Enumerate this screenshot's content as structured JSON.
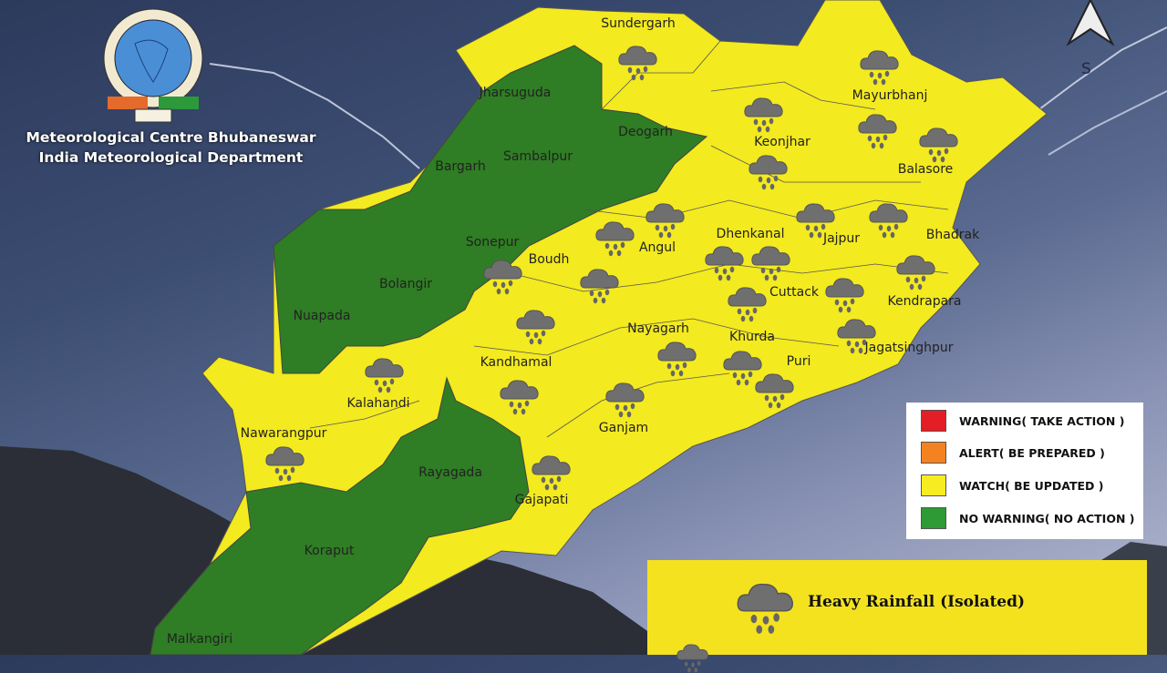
{
  "header": {
    "line1": "Meteorological Centre Bhubaneswar",
    "line2": "India Meteorological Department"
  },
  "logo": {
    "text": "India Meteorological Department",
    "icon": "imd-logo"
  },
  "north_arrow": {
    "label": "S",
    "icon": "north-arrow-icon"
  },
  "colors": {
    "warning": "#e31e24",
    "alert": "#f58220",
    "watch": "#f7ec22",
    "no_warning": "#2d9a35",
    "green_district": "#2f7d24",
    "yellow_district": "#f3ea1f"
  },
  "legend": [
    {
      "label": "WARNING( TAKE ACTION )",
      "color": "#e31e24"
    },
    {
      "label": "ALERT( BE PREPARED )",
      "color": "#f58220"
    },
    {
      "label": "WATCH( BE UPDATED )",
      "color": "#f7ec22"
    },
    {
      "label": "NO WARNING( NO ACTION )",
      "color": "#2d9a35"
    }
  ],
  "impact_legend": [
    {
      "label": "Heavy Rainfall (Isolated)",
      "icon": "rain-cloud-icon"
    }
  ],
  "districts": [
    {
      "name": "Sundergarh",
      "level": "watch"
    },
    {
      "name": "Jharsuguda",
      "level": "no_warning"
    },
    {
      "name": "Deogarh",
      "level": "no_warning"
    },
    {
      "name": "Sambalpur",
      "level": "no_warning"
    },
    {
      "name": "Bargarh",
      "level": "no_warning"
    },
    {
      "name": "Sonepur",
      "level": "no_warning"
    },
    {
      "name": "Bolangir",
      "level": "no_warning"
    },
    {
      "name": "Nuapada",
      "level": "no_warning"
    },
    {
      "name": "Mayurbhanj",
      "level": "watch"
    },
    {
      "name": "Keonjhar",
      "level": "watch"
    },
    {
      "name": "Balasore",
      "level": "watch"
    },
    {
      "name": "Bhadrak",
      "level": "watch"
    },
    {
      "name": "Jajpur",
      "level": "watch"
    },
    {
      "name": "Dhenkanal",
      "level": "watch"
    },
    {
      "name": "Angul",
      "level": "watch"
    },
    {
      "name": "Boudh",
      "level": "watch"
    },
    {
      "name": "Cuttack",
      "level": "watch"
    },
    {
      "name": "Kendrapara",
      "level": "watch"
    },
    {
      "name": "Nayagarh",
      "level": "watch"
    },
    {
      "name": "Khurda",
      "level": "watch"
    },
    {
      "name": "Jagatsinghpur",
      "level": "watch"
    },
    {
      "name": "Puri",
      "level": "watch"
    },
    {
      "name": "Kandhamal",
      "level": "watch"
    },
    {
      "name": "Kalahandi",
      "level": "watch"
    },
    {
      "name": "Ganjam",
      "level": "watch"
    },
    {
      "name": "Nawarangpur",
      "level": "watch"
    },
    {
      "name": "Rayagada",
      "level": "no_warning"
    },
    {
      "name": "Gajapati",
      "level": "watch"
    },
    {
      "name": "Koraput",
      "level": "no_warning"
    },
    {
      "name": "Malkangiri",
      "level": "no_warning"
    }
  ]
}
